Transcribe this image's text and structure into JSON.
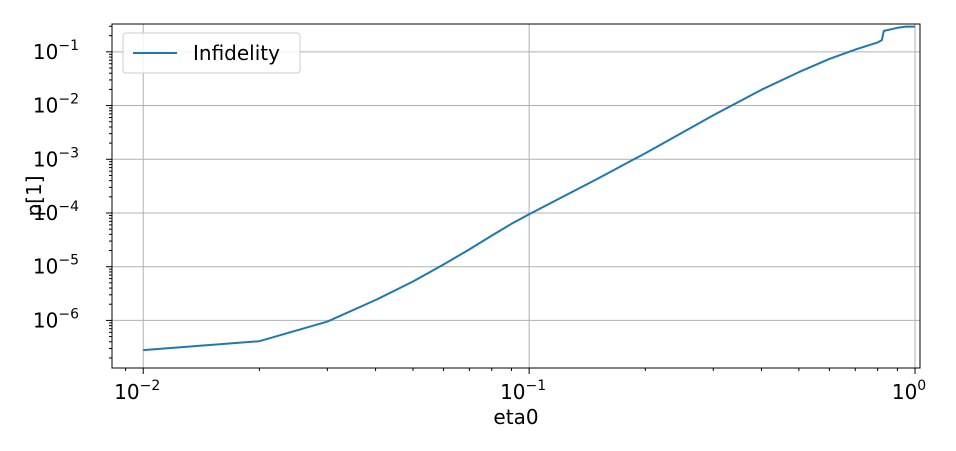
{
  "chart_data": {
    "type": "line",
    "xlabel": "eta0",
    "ylabel": "p[1]",
    "xscale": "log",
    "yscale": "log",
    "xlim": [
      0.0083,
      1.03
    ],
    "ylim": [
      1.3e-07,
      0.33
    ],
    "grid": true,
    "legend": {
      "placement": "top-left",
      "entries": [
        "Infidelity"
      ]
    },
    "colors": {
      "series": "#1f77b4",
      "grid": "#b0b0b0",
      "axes": "#000000"
    },
    "x_ticks": [
      {
        "value": 0.01,
        "base": "10",
        "exp": "−2"
      },
      {
        "value": 0.1,
        "base": "10",
        "exp": "−1"
      },
      {
        "value": 1,
        "base": "10",
        "exp": "0"
      }
    ],
    "y_ticks": [
      {
        "value": 1e-06,
        "base": "10",
        "exp": "−6"
      },
      {
        "value": 1e-05,
        "base": "10",
        "exp": "−5"
      },
      {
        "value": 0.0001,
        "base": "10",
        "exp": "−4"
      },
      {
        "value": 0.001,
        "base": "10",
        "exp": "−3"
      },
      {
        "value": 0.01,
        "base": "10",
        "exp": "−2"
      },
      {
        "value": 0.1,
        "base": "10",
        "exp": "−1"
      }
    ],
    "series": [
      {
        "name": "Infidelity",
        "x": [
          0.01,
          0.02,
          0.03,
          0.04,
          0.05,
          0.06,
          0.07,
          0.08,
          0.09,
          0.1,
          0.15,
          0.2,
          0.3,
          0.4,
          0.5,
          0.6,
          0.7,
          0.8,
          0.82,
          0.83,
          0.9,
          0.95,
          1.0
        ],
        "y": [
          2.8e-07,
          4.1e-07,
          9.5e-07,
          2.4e-06,
          5.3e-06,
          1.1e-05,
          2.1e-05,
          3.8e-05,
          6.3e-05,
          9.5e-05,
          0.00043,
          0.0013,
          0.0066,
          0.0197,
          0.042,
          0.074,
          0.11,
          0.15,
          0.165,
          0.245,
          0.28,
          0.295,
          0.295
        ]
      }
    ]
  }
}
